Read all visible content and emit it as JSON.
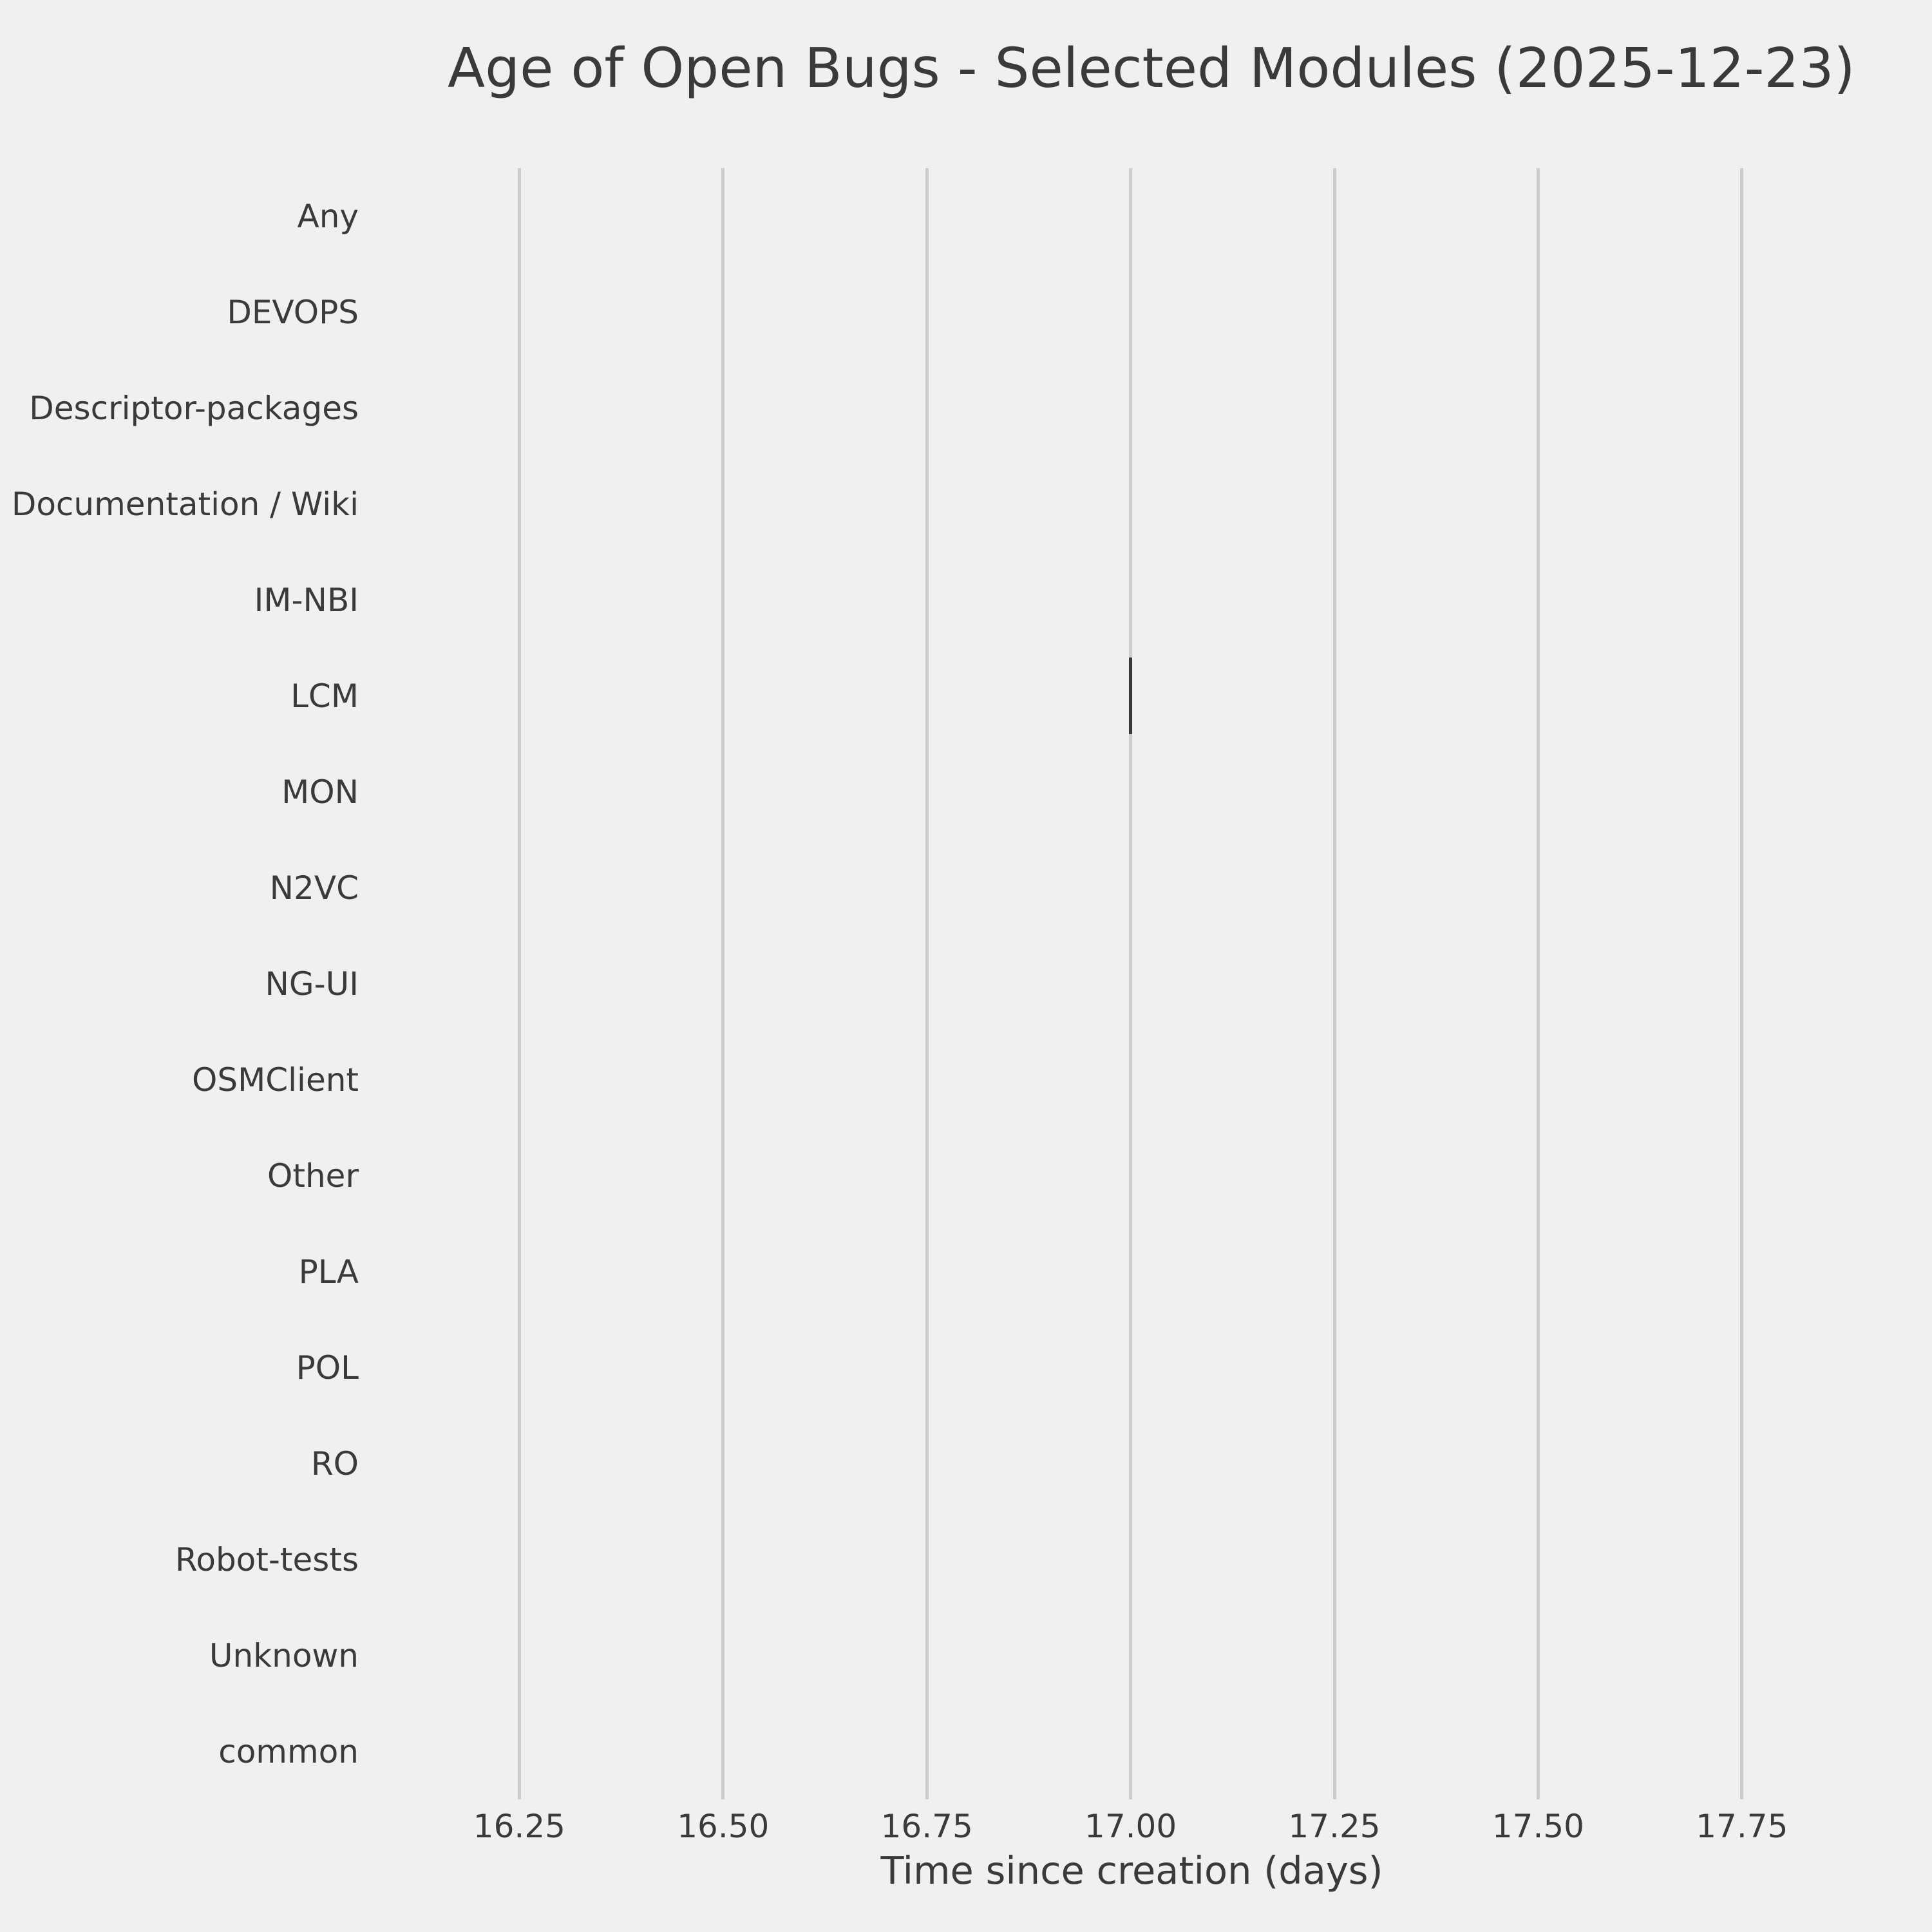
{
  "title": "Age of Open Bugs - Selected Modules (2025-12-23)",
  "xlabel": "Time since creation (days)",
  "categories": [
    "Any",
    "DEVOPS",
    "Descriptor-packages",
    "Documentation / Wiki",
    "IM-NBI",
    "LCM",
    "MON",
    "N2VC",
    "NG-UI",
    "OSMClient",
    "Other",
    "PLA",
    "POL",
    "RO",
    "Robot-tests",
    "Unknown",
    "common"
  ],
  "x_ticks": [
    "16.25",
    "16.50",
    "16.75",
    "17.00",
    "17.25",
    "17.50",
    "17.75"
  ],
  "colors": {
    "background": "#f0f0f0",
    "gridline": "#cdcdcd",
    "text": "#3a3a3a",
    "mark": "#383838"
  },
  "chart_data": {
    "type": "boxplot",
    "orientation": "horizontal",
    "title": "Age of Open Bugs - Selected Modules (2025-12-23)",
    "xlabel": "Time since creation (days)",
    "ylabel": "",
    "categories": [
      "Any",
      "DEVOPS",
      "Descriptor-packages",
      "Documentation / Wiki",
      "IM-NBI",
      "LCM",
      "MON",
      "N2VC",
      "NG-UI",
      "OSMClient",
      "Other",
      "PLA",
      "POL",
      "RO",
      "Robot-tests",
      "Unknown",
      "common"
    ],
    "xlim": [
      16.162,
      17.841
    ],
    "x_tick_values": [
      16.25,
      16.5,
      16.75,
      17.0,
      17.25,
      17.5,
      17.75
    ],
    "grid": "vertical-only",
    "legend_position": "none",
    "box_width_fraction": 0.8,
    "points": [
      {
        "category": "LCM",
        "min": 17.0,
        "q1": 17.0,
        "median": 17.0,
        "q3": 17.0,
        "max": 17.0
      }
    ]
  }
}
